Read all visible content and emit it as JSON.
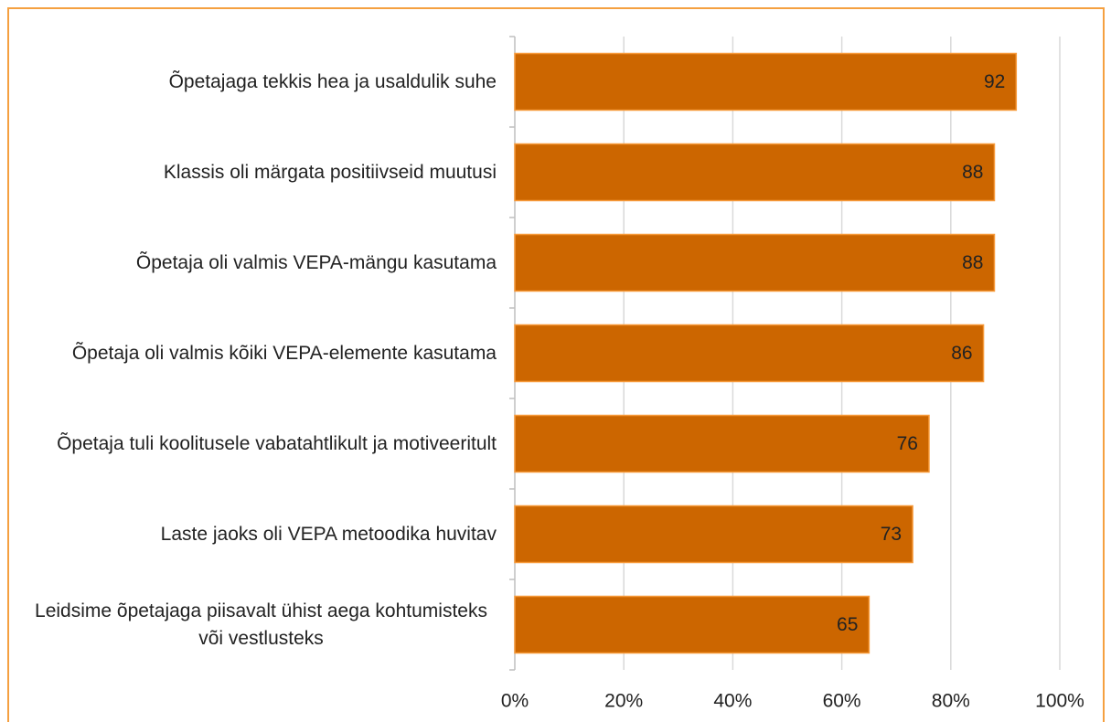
{
  "chart_data": {
    "type": "bar",
    "orientation": "horizontal",
    "categories": [
      "Õpetajaga tekkis hea ja usaldulik suhe",
      "Klassis oli märgata positiivseid muutusi",
      "Õpetaja oli valmis VEPA-mängu kasutama",
      "Õpetaja oli valmis kõiki VEPA-elemente kasutama",
      "Õpetaja tuli koolitusele vabatahtlikult ja motiveeritult",
      "Laste jaoks oli VEPA metoodika huvitav",
      "Leidsime õpetajaga piisavalt ühist aega kohtumisteks või vestlusteks"
    ],
    "values": [
      92,
      88,
      88,
      86,
      76,
      73,
      65
    ],
    "color": "#cc6600",
    "xlim": [
      0,
      100
    ],
    "xticks": [
      {
        "value": 0,
        "label": "0%"
      },
      {
        "value": 20,
        "label": "20%"
      },
      {
        "value": 40,
        "label": "40%"
      },
      {
        "value": 60,
        "label": "60%"
      },
      {
        "value": 80,
        "label": "80%"
      },
      {
        "value": 100,
        "label": "100%"
      }
    ],
    "grid": true
  }
}
